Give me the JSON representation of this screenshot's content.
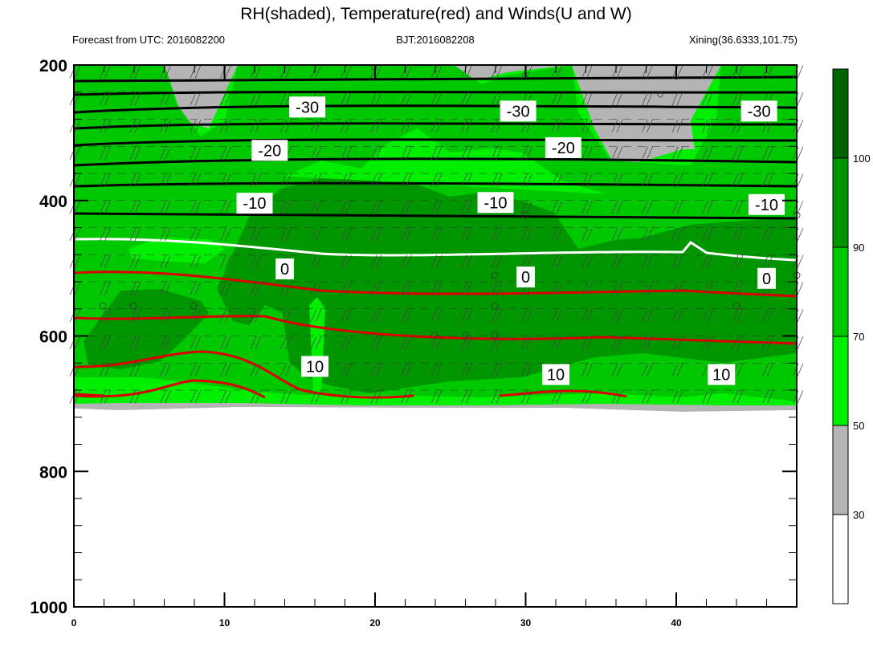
{
  "chart_data": {
    "type": "heatmap",
    "title": "RH(shaded), Temperature(red) and Winds(U and W)",
    "subtitle_left": "Forecast from UTC: 2016082200",
    "subtitle_center": "BJT:2016082208",
    "subtitle_right": "Xining(36.6333,101.75)",
    "x_range": [
      0,
      48
    ],
    "x_ticks": [
      "0",
      "10",
      "20",
      "30",
      "40"
    ],
    "y_range": [
      200,
      1000
    ],
    "y_axis_reversed": true,
    "y_ticks": [
      "200",
      "400",
      "600",
      "800",
      "1000"
    ],
    "colorbar": {
      "levels": [
        "30",
        "50",
        "70",
        "90",
        "100"
      ],
      "colors": [
        "#ffffff",
        "#b4b4b4",
        "#00ee00",
        "#00c800",
        "#009600",
        "#006400"
      ]
    },
    "temperature_contour_labels": [
      {
        "text": "-30",
        "x": 15.5,
        "y": 262
      },
      {
        "text": "-30",
        "x": 29.5,
        "y": 268
      },
      {
        "text": "-30",
        "x": 45.5,
        "y": 268
      },
      {
        "text": "-20",
        "x": 13,
        "y": 326
      },
      {
        "text": "-20",
        "x": 32.5,
        "y": 322
      },
      {
        "text": "-10",
        "x": 12,
        "y": 404
      },
      {
        "text": "-10",
        "x": 28,
        "y": 403
      },
      {
        "text": "-10",
        "x": 46,
        "y": 406
      },
      {
        "text": "0",
        "x": 14,
        "y": 501
      },
      {
        "text": "0",
        "x": 30,
        "y": 513
      },
      {
        "text": "0",
        "x": 46,
        "y": 515
      },
      {
        "text": "10",
        "x": 16,
        "y": 645
      },
      {
        "text": "10",
        "x": 32,
        "y": 657
      },
      {
        "text": "10",
        "x": 43,
        "y": 657
      }
    ],
    "colors": {
      "temperature": "#dd0000",
      "freezing_line": "#ffffff",
      "other_isotherms": "#000000"
    }
  }
}
